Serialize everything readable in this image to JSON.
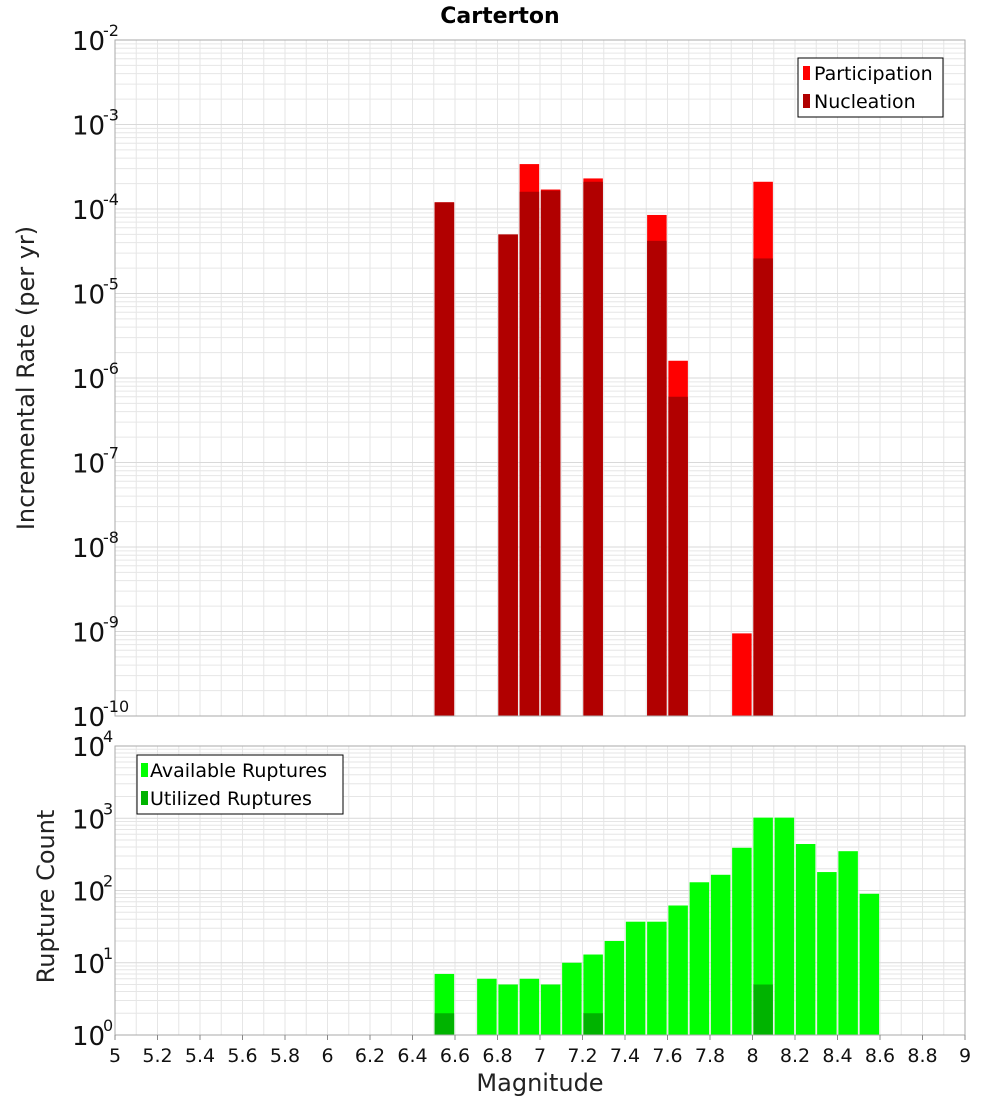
{
  "title": "Carterton",
  "xlabel": "Magnitude",
  "colors": {
    "participation": "#ff0000",
    "nucleation": "#b10000",
    "available": "#00ff00",
    "utilized": "#00b300",
    "grid": "#e6e6e6",
    "frame": "#aaaaaa"
  },
  "chart_data": [
    {
      "type": "bar",
      "scale": "log",
      "ylabel": "Incremental Rate (per yr)",
      "xlim": [
        5,
        9
      ],
      "ylim_exponents": [
        -10,
        -2
      ],
      "grid": true,
      "legend_position": "top-right",
      "legend": [
        "Participation",
        "Nucleation"
      ],
      "series": [
        {
          "name": "Participation",
          "x": [
            6.55,
            6.85,
            6.95,
            7.05,
            7.25,
            7.55,
            7.65,
            7.95,
            8.05
          ],
          "values": [
            0.00012,
            5e-05,
            0.00034,
            0.00017,
            0.00023,
            8.5e-05,
            1.6e-06,
            9.5e-10,
            0.00021
          ]
        },
        {
          "name": "Nucleation",
          "x": [
            6.55,
            6.85,
            6.95,
            7.05,
            7.25,
            7.55,
            7.65,
            8.05
          ],
          "values": [
            0.00012,
            5e-05,
            0.00016,
            0.000165,
            0.00021,
            4.2e-05,
            6e-07,
            2.6e-05
          ]
        }
      ]
    },
    {
      "type": "bar",
      "scale": "log",
      "ylabel": "Rupture Count",
      "xlim": [
        5,
        9
      ],
      "ylim_exponents": [
        0,
        4
      ],
      "grid": true,
      "legend_position": "top-left",
      "legend": [
        "Available Ruptures",
        "Utilized Ruptures"
      ],
      "series": [
        {
          "name": "Available Ruptures",
          "x": [
            6.55,
            6.75,
            6.85,
            6.95,
            7.05,
            7.15,
            7.25,
            7.35,
            7.45,
            7.55,
            7.65,
            7.75,
            7.85,
            7.95,
            8.05,
            8.15,
            8.25,
            8.35,
            8.45,
            8.55
          ],
          "values": [
            7,
            6,
            5,
            6,
            5,
            10,
            13,
            20,
            37,
            37,
            62,
            130,
            165,
            390,
            1020,
            1020,
            440,
            180,
            350,
            90
          ]
        },
        {
          "name": "Utilized Ruptures",
          "x": [
            6.55,
            6.85,
            6.95,
            7.05,
            7.25,
            7.55,
            7.65,
            7.95,
            8.05
          ],
          "values": [
            2,
            1,
            1,
            1,
            2,
            1,
            1,
            1,
            5
          ]
        }
      ]
    }
  ],
  "x_ticks": [
    "5",
    "5.2",
    "5.4",
    "5.6",
    "5.8",
    "6",
    "6.2",
    "6.4",
    "6.6",
    "6.8",
    "7",
    "7.2",
    "7.4",
    "7.6",
    "7.8",
    "8",
    "8.2",
    "8.4",
    "8.6",
    "8.8",
    "9"
  ],
  "top_y_ticks": [
    {
      "base": "10",
      "exp": "-2"
    },
    {
      "base": "10",
      "exp": "-3"
    },
    {
      "base": "10",
      "exp": "-4"
    },
    {
      "base": "10",
      "exp": "-5"
    },
    {
      "base": "10",
      "exp": "-6"
    },
    {
      "base": "10",
      "exp": "-7"
    },
    {
      "base": "10",
      "exp": "-8"
    },
    {
      "base": "10",
      "exp": "-9"
    },
    {
      "base": "10",
      "exp": "-10"
    }
  ],
  "bottom_y_ticks": [
    {
      "base": "10",
      "exp": "4"
    },
    {
      "base": "10",
      "exp": "3"
    },
    {
      "base": "10",
      "exp": "2"
    },
    {
      "base": "10",
      "exp": "1"
    },
    {
      "base": "10",
      "exp": "0"
    }
  ]
}
